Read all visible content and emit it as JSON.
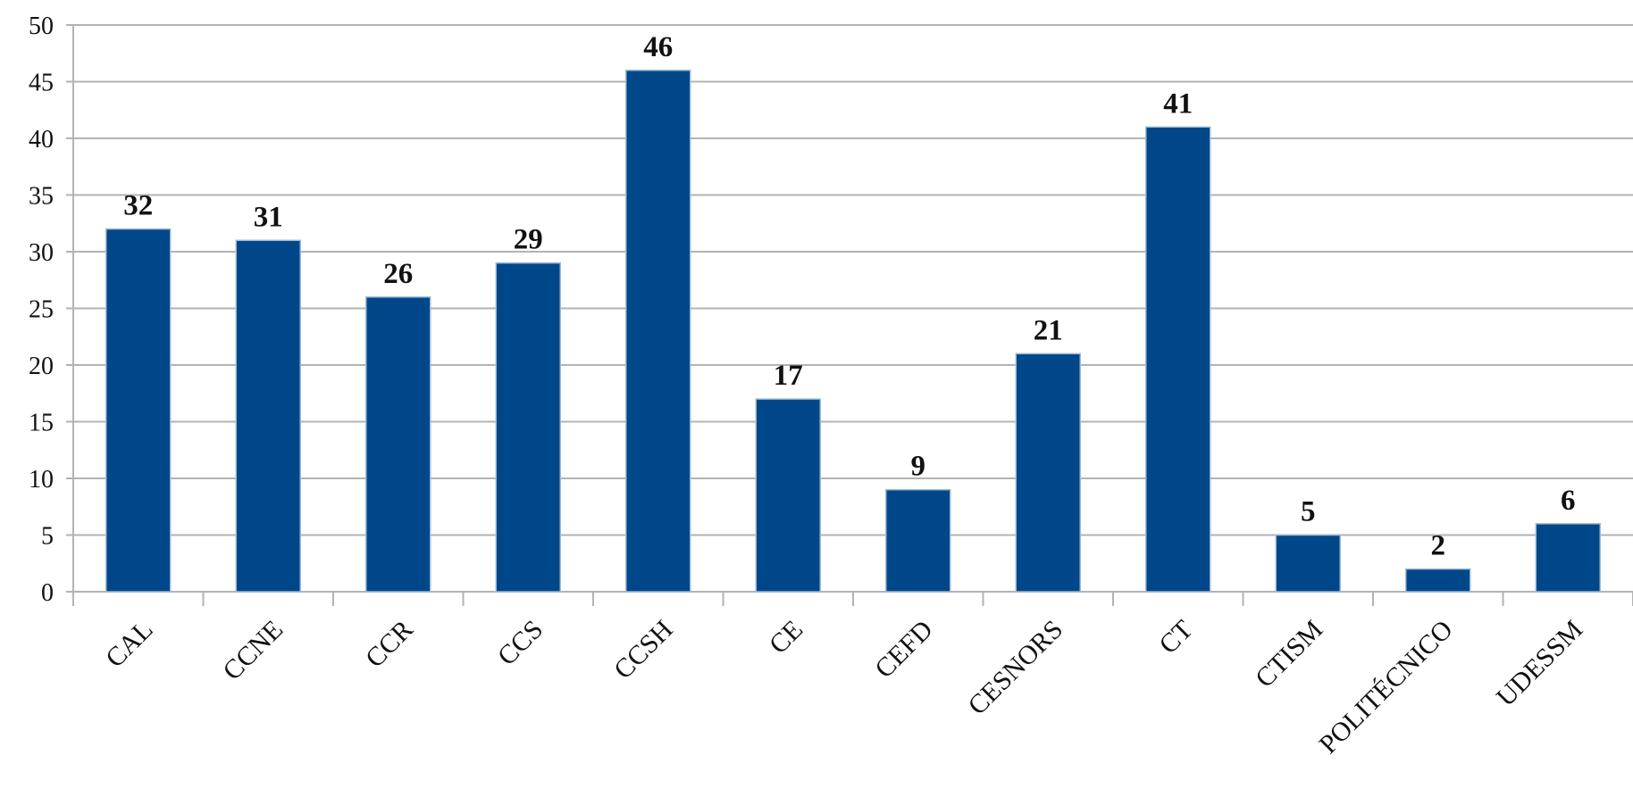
{
  "chart_data": {
    "type": "bar",
    "title": "",
    "xlabel": "",
    "ylabel": "",
    "categories": [
      "CAL",
      "CCNE",
      "CCR",
      "CCS",
      "CCSH",
      "CE",
      "CEFD",
      "CESNORS",
      "CT",
      "CTISM",
      "POLITÉCNICO",
      "UDESSM"
    ],
    "values": [
      32,
      31,
      26,
      29,
      46,
      17,
      9,
      21,
      41,
      5,
      2,
      6
    ],
    "ylim": [
      0,
      50
    ],
    "yticks": [
      0,
      5,
      10,
      15,
      20,
      25,
      30,
      35,
      40,
      45,
      50
    ],
    "grid": true,
    "legend": "none",
    "bar_color": "#00478a",
    "data_labels": true
  }
}
